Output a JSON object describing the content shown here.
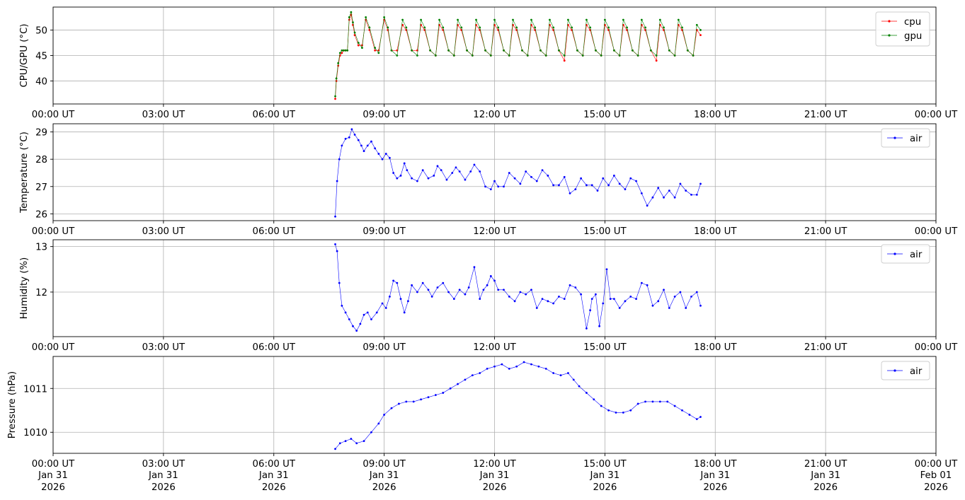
{
  "x_tick_labels": [
    "00:00 UT",
    "03:00 UT",
    "06:00 UT",
    "09:00 UT",
    "12:00 UT",
    "15:00 UT",
    "18:00 UT",
    "21:00 UT",
    "00:00 UT"
  ],
  "x_date_labels": [
    [
      "Jan 31",
      "2026"
    ],
    [
      "Jan 31",
      "2026"
    ],
    [
      "Jan 31",
      "2026"
    ],
    [
      "Jan 31",
      "2026"
    ],
    [
      "Jan 31",
      "2026"
    ],
    [
      "Jan 31",
      "2026"
    ],
    [
      "Jan 31",
      "2026"
    ],
    [
      "Jan 31",
      "2026"
    ],
    [
      "Feb 01",
      "2026"
    ]
  ],
  "chart_data": [
    {
      "type": "line",
      "ylabel": "CPU/GPU (°C)",
      "x_unit": "UT hour of Jan 31 2026",
      "xlim": [
        0,
        24
      ],
      "ylim": [
        35.5,
        54.5
      ],
      "yticks": [
        40,
        45,
        50
      ],
      "grid": true,
      "legend_position": "top-right",
      "series": [
        {
          "name": "cpu",
          "color": "#ff0000",
          "x": [
            7.67,
            7.7,
            7.75,
            7.8,
            7.85,
            7.9,
            7.95,
            8.0,
            8.05,
            8.1,
            8.15,
            8.2,
            8.3,
            8.4,
            8.5,
            8.6,
            8.75,
            8.85,
            9.0,
            9.1,
            9.2,
            9.35,
            9.5,
            9.6,
            9.75,
            9.9,
            10.0,
            10.1,
            10.25,
            10.4,
            10.5,
            10.6,
            10.75,
            10.9,
            11.0,
            11.1,
            11.25,
            11.4,
            11.5,
            11.6,
            11.75,
            11.9,
            12.0,
            12.1,
            12.25,
            12.4,
            12.5,
            12.6,
            12.75,
            12.9,
            13.0,
            13.1,
            13.25,
            13.4,
            13.5,
            13.6,
            13.75,
            13.9,
            14.0,
            14.1,
            14.25,
            14.4,
            14.5,
            14.6,
            14.75,
            14.9,
            15.0,
            15.1,
            15.25,
            15.4,
            15.5,
            15.6,
            15.75,
            15.9,
            16.0,
            16.1,
            16.25,
            16.4,
            16.5,
            16.6,
            16.75,
            16.9,
            17.0,
            17.1,
            17.25,
            17.4,
            17.5,
            17.6
          ],
          "y": [
            36.5,
            40,
            43,
            45,
            45.5,
            46,
            46,
            46,
            52,
            53,
            51,
            49,
            47,
            47,
            52,
            50,
            46,
            46,
            52,
            50,
            46,
            46,
            51,
            50,
            46,
            46,
            51,
            50,
            46,
            45,
            51,
            50,
            46,
            45,
            51,
            50,
            46,
            45,
            51,
            50,
            46,
            45,
            51,
            50,
            46,
            45,
            51,
            50,
            46,
            45,
            51,
            50,
            46,
            45,
            51,
            50,
            46,
            44,
            51,
            50,
            46,
            45,
            51,
            50,
            46,
            45,
            51,
            50,
            46,
            45,
            51,
            50,
            46,
            45,
            51,
            50,
            46,
            44,
            51,
            50,
            46,
            45,
            51,
            50,
            46,
            45,
            50,
            49
          ]
        },
        {
          "name": "gpu",
          "color": "#008000",
          "x": [
            7.67,
            7.7,
            7.75,
            7.8,
            7.85,
            7.9,
            7.95,
            8.0,
            8.05,
            8.1,
            8.15,
            8.2,
            8.3,
            8.4,
            8.5,
            8.6,
            8.75,
            8.85,
            9.0,
            9.1,
            9.2,
            9.35,
            9.5,
            9.6,
            9.75,
            9.9,
            10.0,
            10.1,
            10.25,
            10.4,
            10.5,
            10.6,
            10.75,
            10.9,
            11.0,
            11.1,
            11.25,
            11.4,
            11.5,
            11.6,
            11.75,
            11.9,
            12.0,
            12.1,
            12.25,
            12.4,
            12.5,
            12.6,
            12.75,
            12.9,
            13.0,
            13.1,
            13.25,
            13.4,
            13.5,
            13.6,
            13.75,
            13.9,
            14.0,
            14.1,
            14.25,
            14.4,
            14.5,
            14.6,
            14.75,
            14.9,
            15.0,
            15.1,
            15.25,
            15.4,
            15.5,
            15.6,
            15.75,
            15.9,
            16.0,
            16.1,
            16.25,
            16.4,
            16.5,
            16.6,
            16.75,
            16.9,
            17.0,
            17.1,
            17.25,
            17.4,
            17.5,
            17.6
          ],
          "y": [
            37,
            40.5,
            43.5,
            45.5,
            46,
            46,
            46,
            46,
            52.5,
            53.5,
            51.5,
            49.5,
            47.5,
            46.5,
            52.5,
            50.5,
            46.5,
            45.5,
            52.5,
            50.5,
            46,
            45,
            52,
            50.5,
            46,
            45,
            52,
            50.5,
            46,
            45,
            52,
            50.5,
            46,
            45,
            52,
            50.5,
            46,
            45,
            52,
            50.5,
            46,
            45,
            52,
            50.5,
            46,
            45,
            52,
            50.5,
            46,
            45,
            52,
            50.5,
            46,
            45,
            52,
            50.5,
            46,
            45,
            52,
            50.5,
            46,
            45,
            52,
            50.5,
            46,
            45,
            52,
            50.5,
            46,
            45,
            52,
            50.5,
            46,
            45,
            52,
            50.5,
            46,
            45,
            52,
            50.5,
            46,
            45,
            52,
            50.5,
            46,
            45,
            51,
            50
          ]
        }
      ]
    },
    {
      "type": "line",
      "ylabel": "Temperature (°C)",
      "x_unit": "UT hour of Jan 31 2026",
      "xlim": [
        0,
        24
      ],
      "ylim": [
        25.75,
        29.3
      ],
      "yticks": [
        26,
        27,
        28,
        29
      ],
      "grid": true,
      "legend_position": "top-right",
      "series": [
        {
          "name": "air",
          "color": "#0000ff",
          "x": [
            7.67,
            7.72,
            7.78,
            7.85,
            7.95,
            8.05,
            8.12,
            8.2,
            8.3,
            8.38,
            8.45,
            8.55,
            8.65,
            8.75,
            8.85,
            8.95,
            9.05,
            9.15,
            9.25,
            9.35,
            9.45,
            9.55,
            9.62,
            9.75,
            9.9,
            10.05,
            10.2,
            10.35,
            10.45,
            10.55,
            10.7,
            10.85,
            10.95,
            11.05,
            11.2,
            11.35,
            11.45,
            11.6,
            11.75,
            11.9,
            12.0,
            12.1,
            12.25,
            12.4,
            12.55,
            12.7,
            12.85,
            13.0,
            13.15,
            13.3,
            13.45,
            13.6,
            13.75,
            13.9,
            14.05,
            14.2,
            14.35,
            14.5,
            14.65,
            14.8,
            14.95,
            15.1,
            15.25,
            15.4,
            15.55,
            15.7,
            15.85,
            16.0,
            16.15,
            16.3,
            16.45,
            16.6,
            16.75,
            16.9,
            17.05,
            17.2,
            17.35,
            17.5,
            17.6
          ],
          "y": [
            25.9,
            27.2,
            28.0,
            28.5,
            28.75,
            28.8,
            29.1,
            28.9,
            28.7,
            28.5,
            28.3,
            28.5,
            28.65,
            28.4,
            28.2,
            28.0,
            28.2,
            28.05,
            27.5,
            27.3,
            27.4,
            27.85,
            27.6,
            27.3,
            27.2,
            27.6,
            27.3,
            27.4,
            27.75,
            27.6,
            27.25,
            27.5,
            27.7,
            27.55,
            27.25,
            27.55,
            27.8,
            27.55,
            27.0,
            26.9,
            27.2,
            27.0,
            27.0,
            27.5,
            27.3,
            27.1,
            27.55,
            27.35,
            27.2,
            27.6,
            27.4,
            27.05,
            27.05,
            27.35,
            26.75,
            26.9,
            27.3,
            27.05,
            27.05,
            26.85,
            27.3,
            27.05,
            27.4,
            27.1,
            26.9,
            27.3,
            27.2,
            26.75,
            26.3,
            26.6,
            26.95,
            26.6,
            26.85,
            26.6,
            27.1,
            26.85,
            26.7,
            26.7,
            27.1
          ]
        }
      ]
    },
    {
      "type": "line",
      "ylabel": "Humidity (%)",
      "x_unit": "UT hour of Jan 31 2026",
      "xlim": [
        0,
        24
      ],
      "ylim": [
        11.02,
        13.15
      ],
      "yticks": [
        12,
        13
      ],
      "ytick_labels": [
        "12",
        "13"
      ],
      "grid": true,
      "legend_position": "top-right",
      "series": [
        {
          "name": "air",
          "color": "#0000ff",
          "x": [
            7.67,
            7.72,
            7.78,
            7.85,
            7.95,
            8.05,
            8.15,
            8.25,
            8.35,
            8.45,
            8.55,
            8.65,
            8.8,
            8.95,
            9.05,
            9.15,
            9.25,
            9.35,
            9.45,
            9.55,
            9.65,
            9.75,
            9.9,
            10.05,
            10.2,
            10.3,
            10.45,
            10.6,
            10.75,
            10.9,
            11.05,
            11.2,
            11.3,
            11.45,
            11.6,
            11.7,
            11.8,
            11.9,
            12.0,
            12.1,
            12.25,
            12.4,
            12.55,
            12.7,
            12.85,
            13.0,
            13.15,
            13.3,
            13.45,
            13.6,
            13.75,
            13.9,
            14.05,
            14.2,
            14.35,
            14.5,
            14.6,
            14.65,
            14.75,
            14.85,
            14.95,
            15.05,
            15.15,
            15.25,
            15.4,
            15.55,
            15.7,
            15.85,
            16.0,
            16.15,
            16.3,
            16.45,
            16.6,
            16.75,
            16.9,
            17.05,
            17.2,
            17.35,
            17.5,
            17.6
          ],
          "y": [
            13.05,
            12.9,
            12.2,
            11.7,
            11.55,
            11.4,
            11.25,
            11.15,
            11.3,
            11.5,
            11.55,
            11.4,
            11.55,
            11.75,
            11.65,
            11.9,
            12.25,
            12.2,
            11.85,
            11.55,
            11.8,
            12.15,
            12.0,
            12.2,
            12.05,
            11.9,
            12.1,
            12.2,
            12.0,
            11.85,
            12.05,
            11.95,
            12.1,
            12.55,
            11.85,
            12.05,
            12.15,
            12.35,
            12.25,
            12.05,
            12.05,
            11.9,
            11.8,
            12.0,
            11.95,
            12.05,
            11.65,
            11.85,
            11.8,
            11.75,
            11.9,
            11.85,
            12.15,
            12.1,
            11.95,
            11.2,
            11.6,
            11.85,
            11.95,
            11.25,
            11.75,
            12.5,
            11.85,
            11.85,
            11.65,
            11.8,
            11.9,
            11.85,
            12.2,
            12.15,
            11.7,
            11.8,
            12.05,
            11.65,
            11.9,
            12.0,
            11.65,
            11.9,
            12.0,
            11.7
          ]
        }
      ]
    },
    {
      "type": "line",
      "ylabel": "Pressure (hPa)",
      "x_unit": "UT hour of Jan 31 2026",
      "xlim": [
        0,
        24
      ],
      "ylim": [
        1009.52,
        1011.73
      ],
      "yticks": [
        1010,
        1011
      ],
      "grid": true,
      "legend_position": "top-right",
      "series": [
        {
          "name": "air",
          "color": "#0000ff",
          "x": [
            7.67,
            7.8,
            7.95,
            8.1,
            8.25,
            8.45,
            8.65,
            8.85,
            9.0,
            9.2,
            9.4,
            9.6,
            9.8,
            10.0,
            10.2,
            10.4,
            10.6,
            10.8,
            11.0,
            11.2,
            11.4,
            11.6,
            11.8,
            12.0,
            12.2,
            12.4,
            12.6,
            12.8,
            13.0,
            13.2,
            13.4,
            13.6,
            13.8,
            14.0,
            14.15,
            14.3,
            14.5,
            14.7,
            14.9,
            15.1,
            15.3,
            15.5,
            15.7,
            15.9,
            16.1,
            16.3,
            16.5,
            16.7,
            16.9,
            17.1,
            17.3,
            17.5,
            17.6
          ],
          "y": [
            1009.62,
            1009.75,
            1009.8,
            1009.85,
            1009.75,
            1009.8,
            1010.0,
            1010.2,
            1010.4,
            1010.55,
            1010.65,
            1010.7,
            1010.7,
            1010.75,
            1010.8,
            1010.85,
            1010.9,
            1011.0,
            1011.1,
            1011.2,
            1011.3,
            1011.35,
            1011.45,
            1011.5,
            1011.55,
            1011.45,
            1011.5,
            1011.6,
            1011.55,
            1011.5,
            1011.45,
            1011.35,
            1011.3,
            1011.35,
            1011.2,
            1011.05,
            1010.9,
            1010.75,
            1010.6,
            1010.5,
            1010.45,
            1010.45,
            1010.5,
            1010.65,
            1010.7,
            1010.7,
            1010.7,
            1010.7,
            1010.6,
            1010.5,
            1010.4,
            1010.3,
            1010.35
          ]
        }
      ]
    }
  ]
}
